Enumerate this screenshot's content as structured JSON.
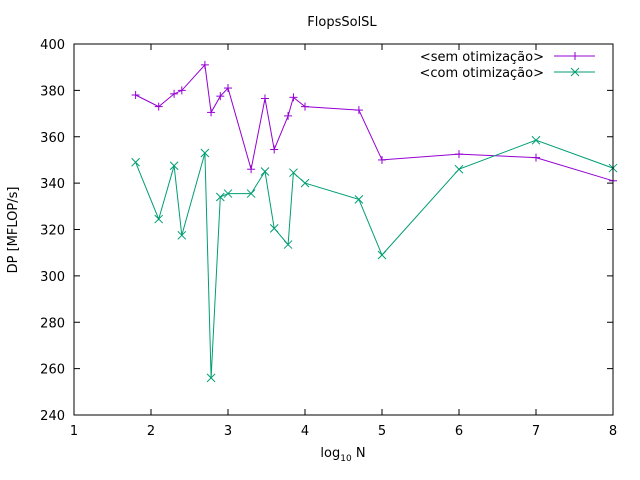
{
  "chart_data": {
    "type": "line",
    "title": "FlopsSolSL",
    "xlabel_main": "log",
    "xlabel_sub": "10",
    "xlabel_tail": " N",
    "ylabel": "DP [MFLOP/s]",
    "xlim": [
      1,
      8
    ],
    "ylim": [
      240,
      400
    ],
    "xticks": [
      1,
      2,
      3,
      4,
      5,
      6,
      7,
      8
    ],
    "yticks": [
      240,
      260,
      280,
      300,
      320,
      340,
      360,
      380,
      400
    ],
    "grid": false,
    "legend_position": "top-right",
    "series": [
      {
        "name": "<sem otimização>",
        "color": "#9400d3",
        "marker": "plus",
        "points": [
          [
            1.8,
            378
          ],
          [
            2.1,
            373
          ],
          [
            2.3,
            378.5
          ],
          [
            2.4,
            380
          ],
          [
            2.7,
            391
          ],
          [
            2.78,
            370.5
          ],
          [
            2.9,
            377.5
          ],
          [
            3.0,
            381
          ],
          [
            3.3,
            346
          ],
          [
            3.48,
            376.5
          ],
          [
            3.6,
            354.5
          ],
          [
            3.78,
            369
          ],
          [
            3.85,
            377
          ],
          [
            4.0,
            373
          ],
          [
            4.7,
            371.5
          ],
          [
            5.0,
            350
          ],
          [
            6.0,
            352.5
          ],
          [
            7.0,
            351
          ],
          [
            8.0,
            341
          ]
        ]
      },
      {
        "name": "<com otimização>",
        "color": "#009e73",
        "marker": "cross",
        "points": [
          [
            1.8,
            349
          ],
          [
            2.1,
            324.5
          ],
          [
            2.3,
            347.5
          ],
          [
            2.4,
            317.5
          ],
          [
            2.7,
            353
          ],
          [
            2.78,
            256
          ],
          [
            2.9,
            334
          ],
          [
            3.0,
            335.5
          ],
          [
            3.3,
            335.5
          ],
          [
            3.48,
            345
          ],
          [
            3.6,
            320.5
          ],
          [
            3.78,
            313.5
          ],
          [
            3.85,
            344.5
          ],
          [
            4.0,
            340
          ],
          [
            4.7,
            333
          ],
          [
            5.0,
            309
          ],
          [
            6.0,
            346
          ],
          [
            7.0,
            358.5
          ],
          [
            8.0,
            346.5
          ]
        ]
      }
    ]
  }
}
